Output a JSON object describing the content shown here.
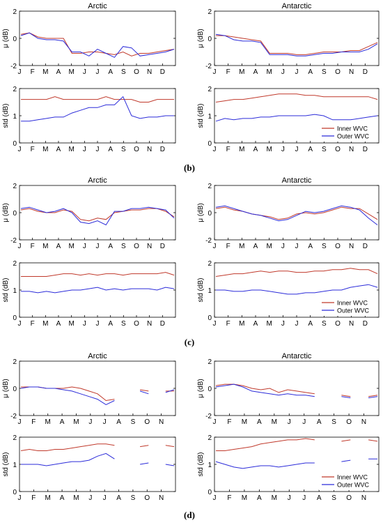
{
  "months_full": [
    "J",
    "F",
    "M",
    "A",
    "M",
    "J",
    "J",
    "A",
    "S",
    "O",
    "N",
    "D"
  ],
  "months_short": [
    "J",
    "F",
    "M",
    "A",
    "M",
    "J",
    "J",
    "A",
    "S",
    "O",
    "N"
  ],
  "legend": [
    "Inner WVC",
    "Outer WVC"
  ],
  "colors": {
    "inner": "#c0392b",
    "outer": "#2b2bd9",
    "axis": "#000000"
  },
  "chart_data": [
    {
      "panel": "(b)",
      "type": "line",
      "region": "Arctic",
      "metric": "mu",
      "title": "Arctic",
      "ylabel": "μ (dB)",
      "ylim": [
        -2,
        2
      ],
      "yticks": [
        -2,
        0,
        2
      ],
      "xticks": [
        "J",
        "F",
        "M",
        "A",
        "M",
        "J",
        "J",
        "A",
        "S",
        "O",
        "N",
        "D"
      ],
      "series": [
        {
          "name": "Inner WVC",
          "values": [
            0.3,
            0.4,
            0.1,
            0.0,
            0.0,
            0.0,
            -1.1,
            -1.1,
            -1.0,
            -1.0,
            -1.1,
            -1.2,
            -1.0,
            -1.3,
            -1.1,
            -1.1,
            -1.0,
            -0.9,
            -0.8
          ]
        },
        {
          "name": "Outer WVC",
          "values": [
            0.2,
            0.4,
            0.0,
            -0.1,
            -0.1,
            -0.2,
            -1.0,
            -1.0,
            -1.3,
            -0.8,
            -1.1,
            -1.4,
            -0.6,
            -0.7,
            -1.3,
            -1.2,
            -1.1,
            -1.0,
            -0.8
          ]
        }
      ]
    },
    {
      "panel": "(b)",
      "type": "line",
      "region": "Antarctic",
      "metric": "mu",
      "title": "Antarctic",
      "ylabel": "μ (dB)",
      "ylim": [
        -2,
        2
      ],
      "yticks": [
        -2,
        0,
        2
      ],
      "xticks": [
        "J",
        "F",
        "M",
        "A",
        "M",
        "J",
        "J",
        "A",
        "S",
        "O",
        "N",
        "D"
      ],
      "series": [
        {
          "name": "Inner WVC",
          "values": [
            0.2,
            0.2,
            0.1,
            0.0,
            -0.1,
            -0.2,
            -1.1,
            -1.1,
            -1.1,
            -1.2,
            -1.2,
            -1.1,
            -1.0,
            -1.0,
            -1.0,
            -0.9,
            -0.9,
            -0.6,
            -0.3
          ]
        },
        {
          "name": "Outer WVC",
          "values": [
            0.3,
            0.2,
            -0.1,
            -0.2,
            -0.2,
            -0.3,
            -1.2,
            -1.2,
            -1.2,
            -1.3,
            -1.3,
            -1.2,
            -1.1,
            -1.1,
            -1.0,
            -1.0,
            -1.0,
            -0.8,
            -0.4
          ]
        }
      ]
    },
    {
      "panel": "(b)",
      "type": "line",
      "region": "Arctic",
      "metric": "std",
      "ylabel": "std (dB)",
      "ylim": [
        0,
        2
      ],
      "yticks": [
        0,
        1,
        2
      ],
      "xticks": [
        "J",
        "F",
        "M",
        "A",
        "M",
        "J",
        "J",
        "A",
        "S",
        "O",
        "N",
        "D"
      ],
      "series": [
        {
          "name": "Inner WVC",
          "values": [
            1.6,
            1.6,
            1.6,
            1.6,
            1.7,
            1.6,
            1.6,
            1.6,
            1.6,
            1.6,
            1.7,
            1.6,
            1.6,
            1.6,
            1.5,
            1.5,
            1.6,
            1.6,
            1.6
          ]
        },
        {
          "name": "Outer WVC",
          "values": [
            0.8,
            0.8,
            0.85,
            0.9,
            0.95,
            0.95,
            1.1,
            1.2,
            1.3,
            1.3,
            1.4,
            1.4,
            1.7,
            1.0,
            0.9,
            0.95,
            0.95,
            1.0,
            1.0
          ]
        }
      ]
    },
    {
      "panel": "(b)",
      "type": "line",
      "region": "Antarctic",
      "metric": "std",
      "ylabel": "std (dB)",
      "ylim": [
        0,
        2
      ],
      "yticks": [
        0,
        1,
        2
      ],
      "xticks": [
        "J",
        "F",
        "M",
        "A",
        "M",
        "J",
        "J",
        "A",
        "S",
        "O",
        "N",
        "D"
      ],
      "series": [
        {
          "name": "Inner WVC",
          "values": [
            1.5,
            1.55,
            1.6,
            1.6,
            1.65,
            1.7,
            1.75,
            1.8,
            1.8,
            1.8,
            1.75,
            1.75,
            1.7,
            1.7,
            1.7,
            1.7,
            1.7,
            1.7,
            1.6
          ]
        },
        {
          "name": "Outer WVC",
          "values": [
            0.8,
            0.9,
            0.85,
            0.9,
            0.9,
            0.95,
            0.95,
            1.0,
            1.0,
            1.0,
            1.0,
            1.05,
            1.0,
            0.85,
            0.85,
            0.85,
            0.9,
            0.95,
            1.0
          ]
        }
      ]
    },
    {
      "panel": "(c)",
      "type": "line",
      "region": "Arctic",
      "metric": "mu",
      "title": "Arctic",
      "ylabel": "μ (dB)",
      "ylim": [
        -2,
        2
      ],
      "yticks": [
        -2,
        0,
        2
      ],
      "xticks": [
        "J",
        "F",
        "M",
        "A",
        "M",
        "J",
        "J",
        "A",
        "S",
        "O",
        "N",
        "D"
      ],
      "series": [
        {
          "name": "Inner WVC",
          "values": [
            0.2,
            0.3,
            0.1,
            0.0,
            0.0,
            0.2,
            0.1,
            -0.5,
            -0.6,
            -0.4,
            -0.5,
            0.0,
            0.1,
            0.2,
            0.2,
            0.3,
            0.3,
            0.1,
            -0.3
          ]
        },
        {
          "name": "Outer WVC",
          "values": [
            0.3,
            0.4,
            0.2,
            0.0,
            0.1,
            0.3,
            0.0,
            -0.7,
            -0.8,
            -0.6,
            -0.9,
            0.1,
            0.1,
            0.3,
            0.3,
            0.4,
            0.3,
            0.2,
            -0.4
          ]
        }
      ]
    },
    {
      "panel": "(c)",
      "type": "line",
      "region": "Antarctic",
      "metric": "mu",
      "title": "Antarctic",
      "ylabel": "μ (dB)",
      "ylim": [
        -2,
        2
      ],
      "yticks": [
        -2,
        0,
        2
      ],
      "xticks": [
        "J",
        "F",
        "M",
        "A",
        "M",
        "J",
        "J",
        "A",
        "S",
        "O",
        "N",
        "D"
      ],
      "series": [
        {
          "name": "Inner WVC",
          "values": [
            0.3,
            0.4,
            0.2,
            0.1,
            -0.1,
            -0.2,
            -0.3,
            -0.5,
            -0.4,
            -0.1,
            0.0,
            -0.1,
            0.0,
            0.2,
            0.4,
            0.3,
            0.3,
            -0.1,
            -0.5
          ]
        },
        {
          "name": "Outer WVC",
          "values": [
            0.4,
            0.5,
            0.3,
            0.1,
            -0.1,
            -0.2,
            -0.4,
            -0.6,
            -0.5,
            -0.2,
            0.1,
            0.0,
            0.1,
            0.3,
            0.5,
            0.4,
            0.2,
            -0.4,
            -0.9
          ]
        }
      ]
    },
    {
      "panel": "(c)",
      "type": "line",
      "region": "Arctic",
      "metric": "std",
      "ylabel": "std (dB)",
      "ylim": [
        0,
        2
      ],
      "yticks": [
        0,
        1,
        2
      ],
      "xticks": [
        "J",
        "F",
        "M",
        "A",
        "M",
        "J",
        "J",
        "A",
        "S",
        "O",
        "N",
        "D"
      ],
      "series": [
        {
          "name": "Inner WVC",
          "values": [
            1.5,
            1.5,
            1.5,
            1.5,
            1.55,
            1.6,
            1.6,
            1.55,
            1.6,
            1.55,
            1.6,
            1.6,
            1.55,
            1.6,
            1.6,
            1.6,
            1.6,
            1.65,
            1.55
          ]
        },
        {
          "name": "Outer WVC",
          "values": [
            0.95,
            0.95,
            0.9,
            0.95,
            0.9,
            0.95,
            1.0,
            1.0,
            1.05,
            1.1,
            1.0,
            1.05,
            1.0,
            1.05,
            1.05,
            1.05,
            1.0,
            1.1,
            1.05
          ]
        }
      ]
    },
    {
      "panel": "(c)",
      "type": "line",
      "region": "Antarctic",
      "metric": "std",
      "ylabel": "std (dB)",
      "ylim": [
        0,
        2
      ],
      "yticks": [
        0,
        1,
        2
      ],
      "xticks": [
        "J",
        "F",
        "M",
        "A",
        "M",
        "J",
        "J",
        "A",
        "S",
        "O",
        "N",
        "D"
      ],
      "series": [
        {
          "name": "Inner WVC",
          "values": [
            1.5,
            1.55,
            1.6,
            1.6,
            1.65,
            1.7,
            1.65,
            1.7,
            1.7,
            1.65,
            1.65,
            1.7,
            1.7,
            1.75,
            1.75,
            1.8,
            1.75,
            1.75,
            1.6
          ]
        },
        {
          "name": "Outer WVC",
          "values": [
            1.0,
            1.0,
            0.95,
            0.95,
            1.0,
            1.0,
            0.95,
            0.9,
            0.85,
            0.85,
            0.9,
            0.9,
            0.95,
            1.0,
            1.0,
            1.1,
            1.15,
            1.2,
            1.1
          ]
        }
      ]
    },
    {
      "panel": "(d)",
      "type": "line",
      "region": "Arctic",
      "metric": "mu",
      "title": "Arctic",
      "ylabel": "μ (dB)",
      "ylim": [
        -2,
        2
      ],
      "yticks": [
        -2,
        0,
        2
      ],
      "xticks": [
        "J",
        "F",
        "M",
        "A",
        "M",
        "J",
        "J",
        "A",
        "S",
        "O",
        "N"
      ],
      "series": [
        {
          "name": "Inner WVC",
          "values": [
            0.1,
            0.1,
            0.1,
            0.0,
            0.0,
            0.0,
            0.1,
            0.0,
            -0.2,
            -0.4,
            -0.9,
            -0.8,
            null,
            null,
            -0.1,
            -0.2,
            null,
            -0.2,
            -0.2
          ]
        },
        {
          "name": "Outer WVC",
          "values": [
            0.0,
            0.1,
            0.1,
            0.0,
            0.0,
            -0.1,
            -0.2,
            -0.4,
            -0.6,
            -0.8,
            -1.2,
            -0.9,
            null,
            null,
            -0.2,
            -0.4,
            null,
            -0.3,
            -0.1
          ]
        }
      ]
    },
    {
      "panel": "(d)",
      "type": "line",
      "region": "Antarctic",
      "metric": "mu",
      "title": "Antarctic",
      "ylabel": "μ (dB)",
      "ylim": [
        -2,
        2
      ],
      "yticks": [
        -2,
        0,
        2
      ],
      "xticks": [
        "J",
        "F",
        "M",
        "A",
        "M",
        "J",
        "J",
        "A",
        "S",
        "O",
        "N"
      ],
      "series": [
        {
          "name": "Inner WVC",
          "values": [
            0.2,
            0.3,
            0.3,
            0.2,
            0.0,
            -0.1,
            0.0,
            -0.3,
            -0.1,
            -0.2,
            -0.3,
            -0.4,
            null,
            null,
            -0.5,
            -0.6,
            null,
            -0.6,
            -0.5
          ]
        },
        {
          "name": "Outer WVC",
          "values": [
            0.1,
            0.2,
            0.3,
            0.1,
            -0.2,
            -0.3,
            -0.4,
            -0.5,
            -0.4,
            -0.5,
            -0.5,
            -0.6,
            null,
            null,
            -0.6,
            -0.7,
            null,
            -0.7,
            -0.6
          ]
        }
      ]
    },
    {
      "panel": "(d)",
      "type": "line",
      "region": "Arctic",
      "metric": "std",
      "ylabel": "std (dB)",
      "ylim": [
        0,
        2
      ],
      "yticks": [
        0,
        1,
        2
      ],
      "xticks": [
        "J",
        "F",
        "M",
        "A",
        "M",
        "J",
        "J",
        "A",
        "S",
        "O",
        "N"
      ],
      "series": [
        {
          "name": "Inner WVC",
          "values": [
            1.5,
            1.55,
            1.5,
            1.5,
            1.55,
            1.55,
            1.6,
            1.65,
            1.7,
            1.75,
            1.75,
            1.7,
            null,
            null,
            1.65,
            1.7,
            null,
            1.7,
            1.65
          ]
        },
        {
          "name": "Outer WVC",
          "values": [
            1.0,
            1.0,
            1.0,
            0.95,
            1.0,
            1.05,
            1.1,
            1.1,
            1.15,
            1.3,
            1.4,
            1.2,
            null,
            null,
            1.0,
            1.05,
            null,
            1.0,
            0.95
          ]
        }
      ]
    },
    {
      "panel": "(d)",
      "type": "line",
      "region": "Antarctic",
      "metric": "std",
      "ylabel": "std (dB)",
      "ylim": [
        0,
        2
      ],
      "yticks": [
        0,
        1,
        2
      ],
      "xticks": [
        "J",
        "F",
        "M",
        "A",
        "M",
        "J",
        "J",
        "A",
        "S",
        "O",
        "N"
      ],
      "series": [
        {
          "name": "Inner WVC",
          "values": [
            1.5,
            1.5,
            1.55,
            1.6,
            1.65,
            1.75,
            1.8,
            1.85,
            1.9,
            1.9,
            1.95,
            1.9,
            null,
            null,
            1.85,
            1.9,
            null,
            1.9,
            1.85
          ]
        },
        {
          "name": "Outer WVC",
          "values": [
            1.1,
            1.0,
            0.9,
            0.85,
            0.9,
            0.95,
            0.95,
            0.9,
            0.95,
            1.0,
            1.05,
            1.05,
            null,
            null,
            1.1,
            1.15,
            null,
            1.2,
            1.2
          ]
        }
      ]
    }
  ],
  "panel_labels": [
    "(b)",
    "(c)",
    "(d)"
  ]
}
